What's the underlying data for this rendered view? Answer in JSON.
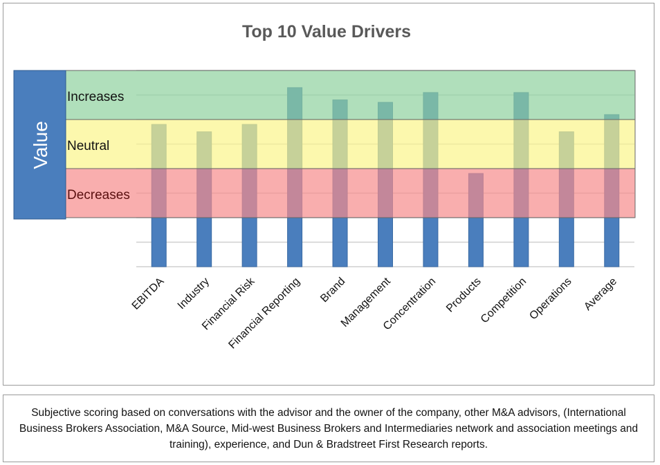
{
  "chart_data": {
    "type": "bar",
    "title": "Top 10 Value Drivers",
    "ylabel": "Value",
    "categories": [
      "EBITDA",
      "Industry",
      "Financial Risk",
      "Financial Reporting",
      "Brand",
      "Management",
      "Concentration",
      "Products",
      "Competition",
      "Operations",
      "Average"
    ],
    "values": [
      5.8,
      5.5,
      5.8,
      7.3,
      6.8,
      6.7,
      7.1,
      3.8,
      7.1,
      5.5,
      6.2
    ],
    "ylim": [
      0,
      8
    ],
    "bands": [
      {
        "label": "Increases",
        "from": 6,
        "to": 8,
        "color": "#8fd19e"
      },
      {
        "label": "Neutral",
        "from": 4,
        "to": 6,
        "color": "#fbf58a"
      },
      {
        "label": "Decreases",
        "from": 2,
        "to": 4,
        "color": "#f78c8c"
      }
    ],
    "bar_color": "#4a7ebd",
    "grid": true
  },
  "caption": "Subjective scoring based on conversations with the advisor and the owner of the company, other M&A advisors, (International Business Brokers Association, M&A Source, Mid-west Business Brokers and Intermediaries network and association meetings and training), experience, and Dun & Bradstreet First Research reports."
}
